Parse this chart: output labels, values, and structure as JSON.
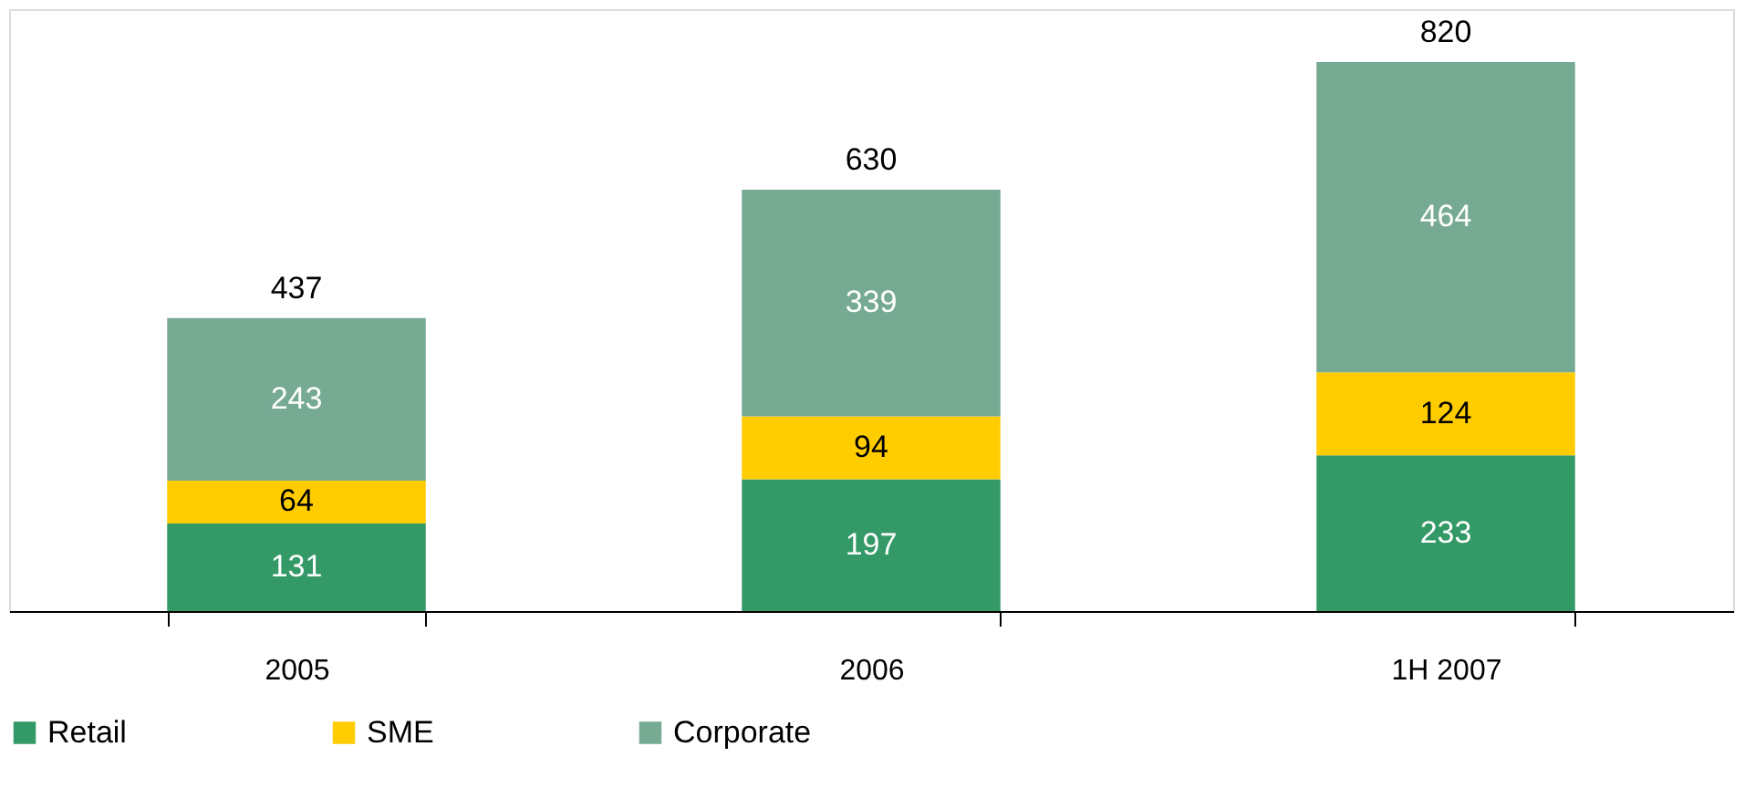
{
  "chart_data": {
    "type": "bar",
    "stacked": true,
    "categories": [
      "2005",
      "2006",
      "1H 2007"
    ],
    "series": [
      {
        "name": "Retail",
        "color": "#339966",
        "values": [
          131,
          197,
          233
        ]
      },
      {
        "name": "SME",
        "color": "#ffcc00",
        "values": [
          64,
          94,
          124
        ]
      },
      {
        "name": "Corporate",
        "color": "#77aa93",
        "values": [
          243,
          339,
          464
        ]
      }
    ],
    "data_labels": true,
    "totals": [
      "437",
      "630",
      "820"
    ],
    "legend": "bottom"
  }
}
